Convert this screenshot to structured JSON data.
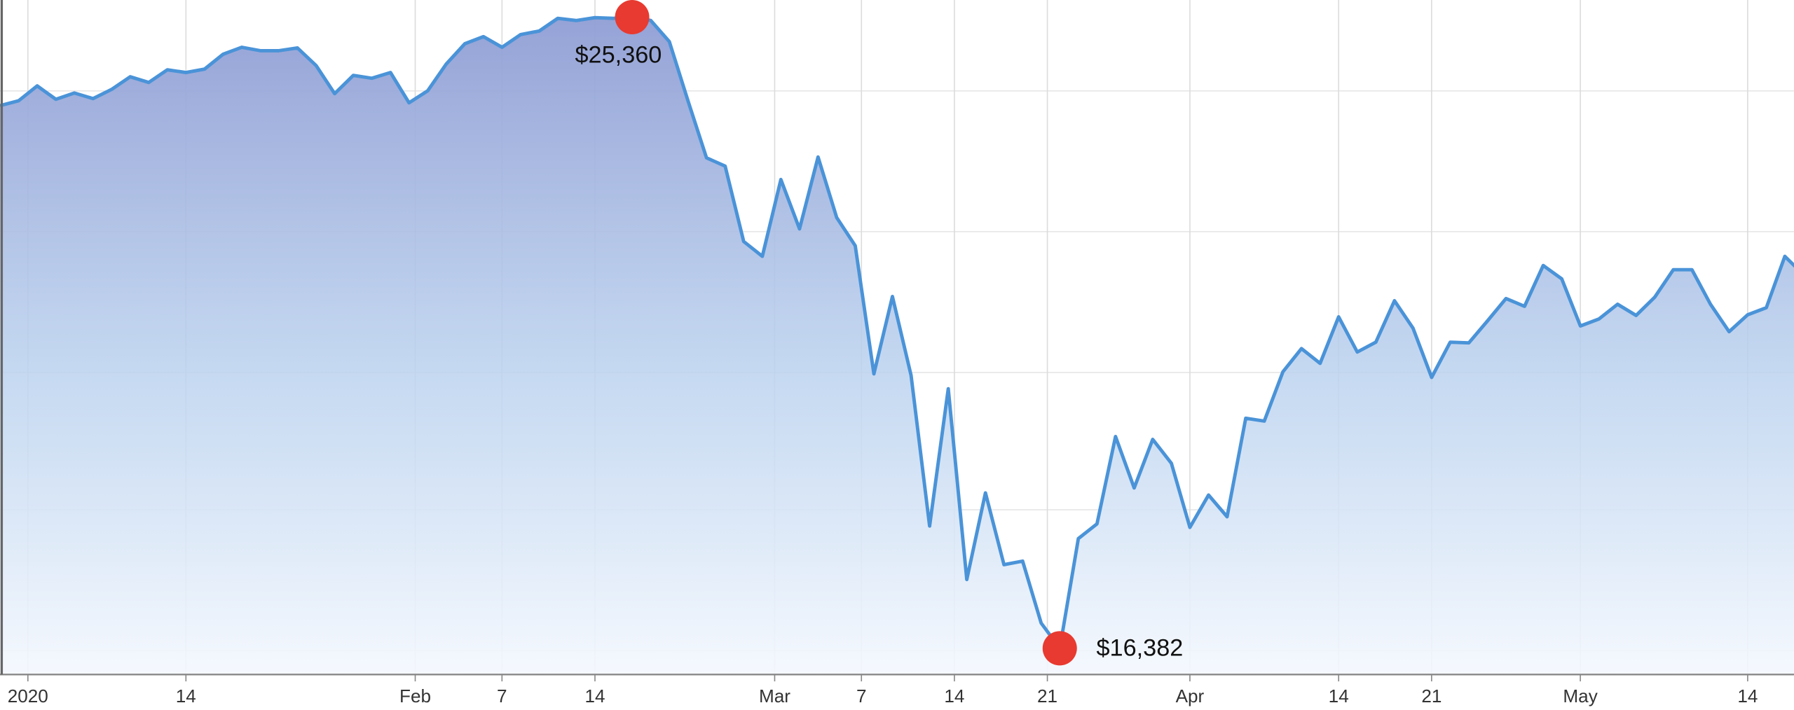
{
  "chart_data": {
    "type": "area",
    "x": [
      "2019-12-30",
      "2019-12-31",
      "2020-01-02",
      "2020-01-03",
      "2020-01-06",
      "2020-01-07",
      "2020-01-08",
      "2020-01-09",
      "2020-01-10",
      "2020-01-13",
      "2020-01-14",
      "2020-01-15",
      "2020-01-16",
      "2020-01-17",
      "2020-01-21",
      "2020-01-22",
      "2020-01-23",
      "2020-01-24",
      "2020-01-27",
      "2020-01-28",
      "2020-01-29",
      "2020-01-30",
      "2020-01-31",
      "2020-02-03",
      "2020-02-04",
      "2020-02-05",
      "2020-02-06",
      "2020-02-07",
      "2020-02-10",
      "2020-02-11",
      "2020-02-12",
      "2020-02-13",
      "2020-02-14",
      "2020-02-18",
      "2020-02-19",
      "2020-02-20",
      "2020-02-21",
      "2020-02-24",
      "2020-02-25",
      "2020-02-26",
      "2020-02-27",
      "2020-02-28",
      "2020-03-02",
      "2020-03-03",
      "2020-03-04",
      "2020-03-05",
      "2020-03-06",
      "2020-03-09",
      "2020-03-10",
      "2020-03-11",
      "2020-03-12",
      "2020-03-13",
      "2020-03-16",
      "2020-03-17",
      "2020-03-18",
      "2020-03-19",
      "2020-03-20",
      "2020-03-23",
      "2020-03-24",
      "2020-03-25",
      "2020-03-26",
      "2020-03-27",
      "2020-03-30",
      "2020-03-31",
      "2020-04-01",
      "2020-04-02",
      "2020-04-03",
      "2020-04-06",
      "2020-04-07",
      "2020-04-08",
      "2020-04-09",
      "2020-04-13",
      "2020-04-14",
      "2020-04-15",
      "2020-04-16",
      "2020-04-17",
      "2020-04-20",
      "2020-04-21",
      "2020-04-22",
      "2020-04-23",
      "2020-04-24",
      "2020-04-27",
      "2020-04-28",
      "2020-04-29",
      "2020-04-30",
      "2020-05-01",
      "2020-05-04",
      "2020-05-05",
      "2020-05-06",
      "2020-05-07",
      "2020-05-08",
      "2020-05-11",
      "2020-05-12",
      "2020-05-13",
      "2020-05-14",
      "2020-05-15",
      "2020-05-18",
      "2020-05-19"
    ],
    "series": [
      {
        "color": "#4a93d8",
        "values": [
          24090,
          24160,
          24370,
          24180,
          24270,
          24190,
          24320,
          24500,
          24420,
          24600,
          24560,
          24610,
          24820,
          24920,
          24870,
          24870,
          24910,
          24660,
          24260,
          24520,
          24480,
          24560,
          24130,
          24300,
          24680,
          24970,
          25070,
          24920,
          25100,
          25150,
          25330,
          25300,
          25340,
          25330,
          25360,
          25300,
          25000,
          24160,
          23350,
          23230,
          22160,
          21950,
          23040,
          22340,
          23360,
          22500,
          22100,
          20280,
          21380,
          20260,
          18120,
          20070,
          17360,
          18590,
          17570,
          17620,
          16740,
          16382,
          17940,
          18150,
          19390,
          18660,
          19350,
          19010,
          18100,
          18560,
          18250,
          19650,
          19610,
          20310,
          20640,
          20430,
          21090,
          20590,
          20730,
          21320,
          20930,
          20230,
          20730,
          20720,
          21030,
          21350,
          21240,
          21820,
          21630,
          20960,
          21060,
          21270,
          21110,
          21370,
          21760,
          21760,
          21270,
          20880,
          21120,
          21220,
          21950,
          21690
        ]
      }
    ],
    "xticks": [
      {
        "value": "2020-01-01",
        "label": "2020"
      },
      {
        "value": "2020-01-14",
        "label": "14"
      },
      {
        "value": "2020-02-01",
        "label": "Feb"
      },
      {
        "value": "2020-02-07",
        "label": "7"
      },
      {
        "value": "2020-02-14",
        "label": "14"
      },
      {
        "value": "2020-03-01",
        "label": "Mar"
      },
      {
        "value": "2020-03-07",
        "label": "7"
      },
      {
        "value": "2020-03-14",
        "label": "14"
      },
      {
        "value": "2020-03-21",
        "label": "21"
      },
      {
        "value": "2020-04-01",
        "label": "Apr"
      },
      {
        "value": "2020-04-14",
        "label": "14"
      },
      {
        "value": "2020-04-21",
        "label": "21"
      },
      {
        "value": "2020-05-01",
        "label": "May"
      },
      {
        "value": "2020-05-14",
        "label": "14"
      }
    ],
    "ylim": [
      16010,
      25590
    ],
    "yticks": [
      16350,
      18350,
      20300,
      22300,
      24300
    ],
    "grid": true,
    "annotations": [
      {
        "label": "$25,360",
        "value": 25360,
        "x": "2020-02-19"
      },
      {
        "label": "$16,382",
        "value": 16382,
        "x": "2020-03-23"
      }
    ],
    "marker_color": "#e83a30"
  }
}
